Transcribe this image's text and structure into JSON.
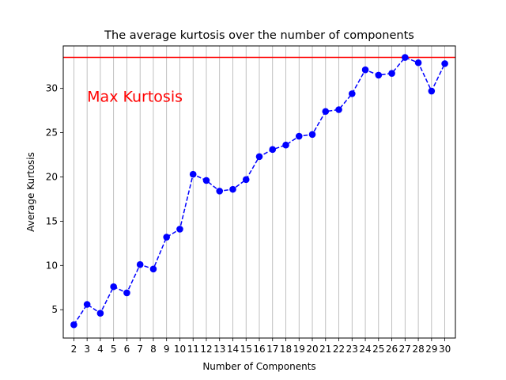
{
  "chart_data": {
    "type": "line",
    "title": "The average kurtosis over the number of components",
    "xlabel": "Number of Components",
    "ylabel": "Average Kurtosis",
    "x": [
      2,
      3,
      4,
      5,
      6,
      7,
      8,
      9,
      10,
      11,
      12,
      13,
      14,
      15,
      16,
      17,
      18,
      19,
      20,
      21,
      22,
      23,
      24,
      25,
      26,
      27,
      28,
      29,
      30
    ],
    "series": [
      {
        "values": [
          3.3,
          5.6,
          4.6,
          7.6,
          6.9,
          10.1,
          9.6,
          13.2,
          14.1,
          20.3,
          19.6,
          18.4,
          18.6,
          19.7,
          22.3,
          23.1,
          23.6,
          24.6,
          24.8,
          27.4,
          27.6,
          29.4,
          32.1,
          31.5,
          31.7,
          33.5,
          32.9,
          29.7,
          32.8
        ],
        "color": "#0000ff",
        "linestyle": "dashed",
        "marker": "circle"
      }
    ],
    "reference_line": {
      "y": 33.5,
      "color": "#ff0000"
    },
    "annotation": {
      "text": "Max Kurtosis",
      "x": 3,
      "y": 28.5,
      "color": "#ff0000"
    },
    "yticks": [
      5,
      10,
      15,
      20,
      25,
      30
    ],
    "ylim": [
      1.8,
      34.8
    ],
    "xlim": [
      1.2,
      30.8
    ],
    "grid": "vertical"
  }
}
